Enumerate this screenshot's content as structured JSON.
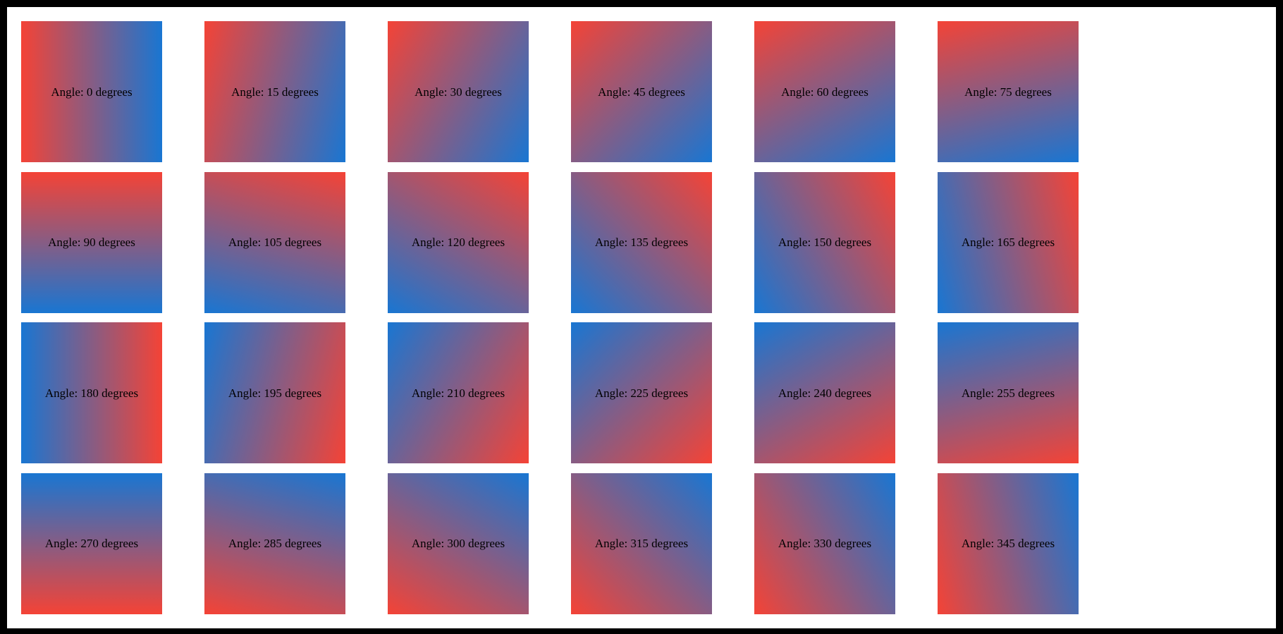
{
  "page": {
    "frame_color": "#000000",
    "canvas_color": "#ffffff",
    "text_color": "#000000"
  },
  "gradient": {
    "start_color": "#f44336",
    "end_color": "#1976d2",
    "css_angle_offset": 90
  },
  "squares": [
    {
      "angle": 0,
      "label": "Angle: 0 degrees"
    },
    {
      "angle": 15,
      "label": "Angle: 15 degrees"
    },
    {
      "angle": 30,
      "label": "Angle: 30 degrees"
    },
    {
      "angle": 45,
      "label": "Angle: 45 degrees"
    },
    {
      "angle": 60,
      "label": "Angle: 60 degrees"
    },
    {
      "angle": 75,
      "label": "Angle: 75 degrees"
    },
    {
      "angle": 90,
      "label": "Angle: 90 degrees"
    },
    {
      "angle": 105,
      "label": "Angle: 105 degrees"
    },
    {
      "angle": 120,
      "label": "Angle: 120 degrees"
    },
    {
      "angle": 135,
      "label": "Angle: 135 degrees"
    },
    {
      "angle": 150,
      "label": "Angle: 150 degrees"
    },
    {
      "angle": 165,
      "label": "Angle: 165 degrees"
    },
    {
      "angle": 180,
      "label": "Angle: 180 degrees"
    },
    {
      "angle": 195,
      "label": "Angle: 195 degrees"
    },
    {
      "angle": 210,
      "label": "Angle: 210 degrees"
    },
    {
      "angle": 225,
      "label": "Angle: 225 degrees"
    },
    {
      "angle": 240,
      "label": "Angle: 240 degrees"
    },
    {
      "angle": 255,
      "label": "Angle: 255 degrees"
    },
    {
      "angle": 270,
      "label": "Angle: 270 degrees"
    },
    {
      "angle": 285,
      "label": "Angle: 285 degrees"
    },
    {
      "angle": 300,
      "label": "Angle: 300 degrees"
    },
    {
      "angle": 315,
      "label": "Angle: 315 degrees"
    },
    {
      "angle": 330,
      "label": "Angle: 330 degrees"
    },
    {
      "angle": 345,
      "label": "Angle: 345 degrees"
    }
  ]
}
